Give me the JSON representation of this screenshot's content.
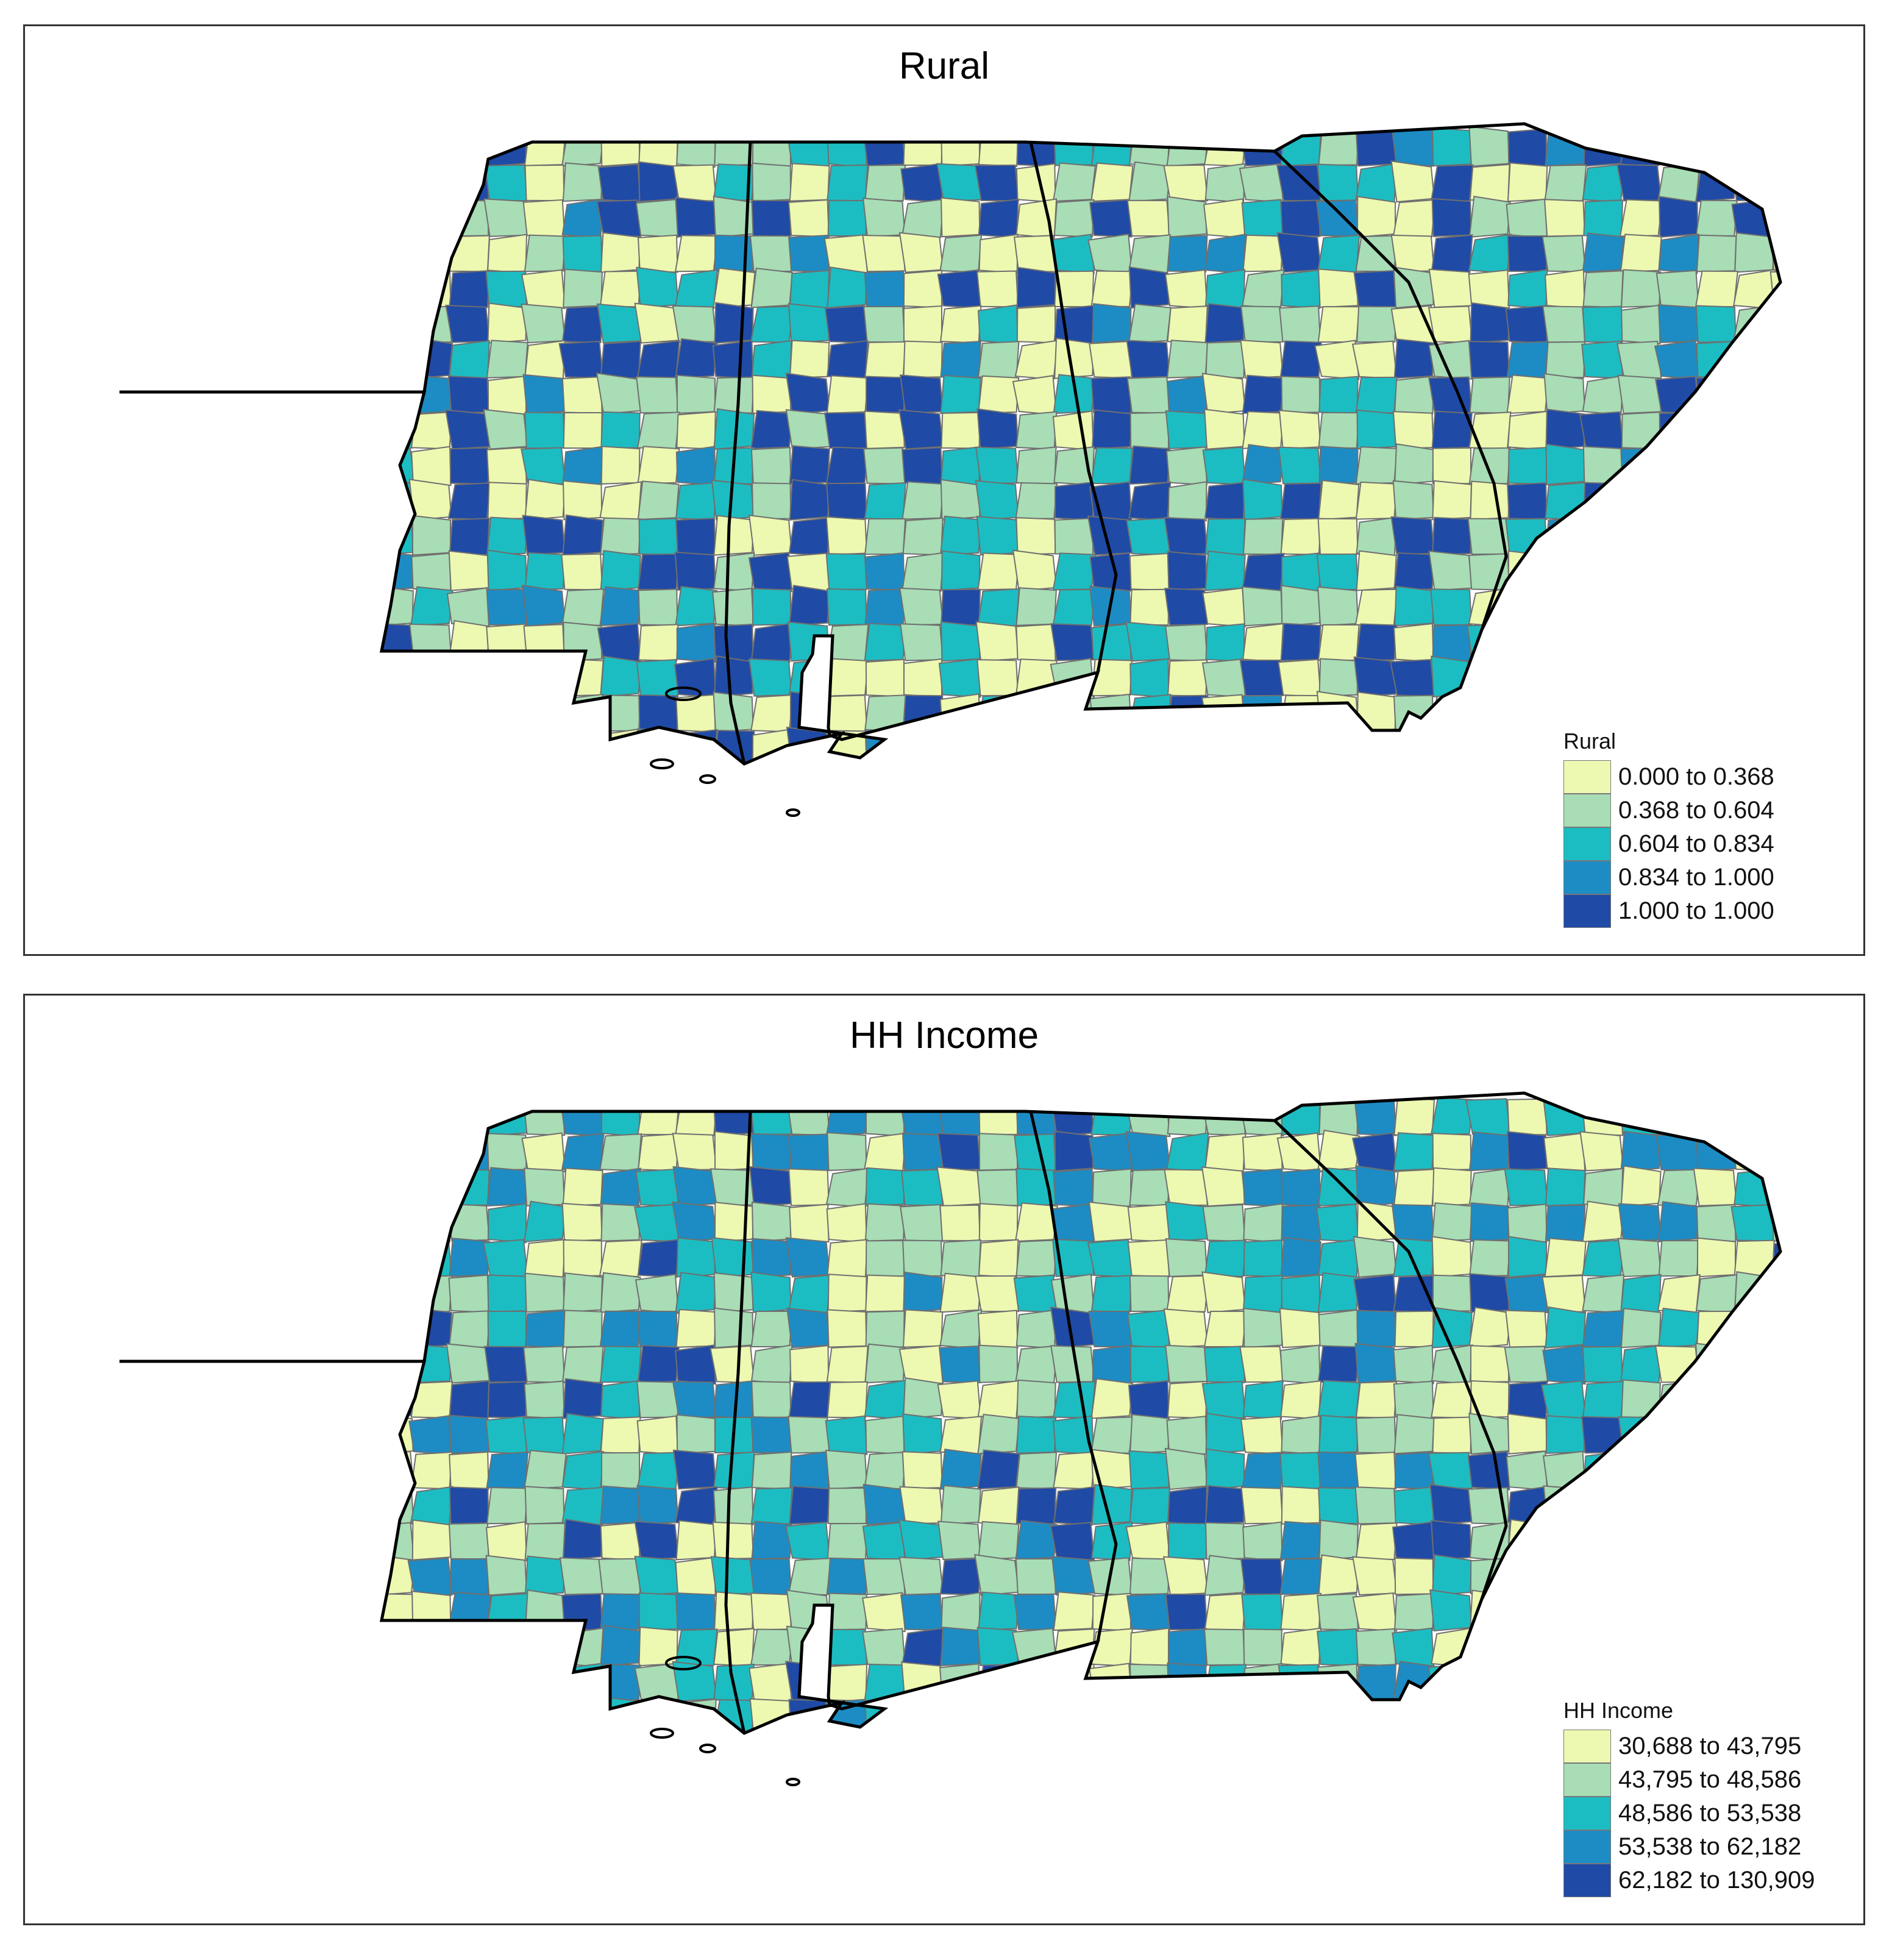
{
  "palette": [
    "#edf8b1",
    "#a8ddb5",
    "#1cbdc2",
    "#1d8cc4",
    "#1f4aa6"
  ],
  "maps": [
    {
      "id": "rural",
      "title": "Rural",
      "legend": {
        "title": "Rural",
        "items": [
          {
            "label": "0.000 to 0.368",
            "class_index": 0
          },
          {
            "label": "0.368 to 0.604",
            "class_index": 1
          },
          {
            "label": "0.604 to 0.834",
            "class_index": 2
          },
          {
            "label": "0.834 to 1.000",
            "class_index": 3
          },
          {
            "label": "1.000 to 1.000",
            "class_index": 4
          }
        ]
      },
      "seed": 7,
      "weights": [
        0.25,
        0.22,
        0.18,
        0.08,
        0.27
      ]
    },
    {
      "id": "income",
      "title": "HH Income",
      "legend": {
        "title": "HH Income",
        "items": [
          {
            "label": "30,688 to 43,795",
            "class_index": 0
          },
          {
            "label": "43,795 to 48,586",
            "class_index": 1
          },
          {
            "label": "48,586 to 53,538",
            "class_index": 2
          },
          {
            "label": "53,538 to 62,182",
            "class_index": 3
          },
          {
            "label": "62,182 to 130,909",
            "class_index": 4
          }
        ]
      },
      "seed": 19,
      "weights": [
        0.28,
        0.27,
        0.19,
        0.16,
        0.1
      ]
    }
  ]
}
